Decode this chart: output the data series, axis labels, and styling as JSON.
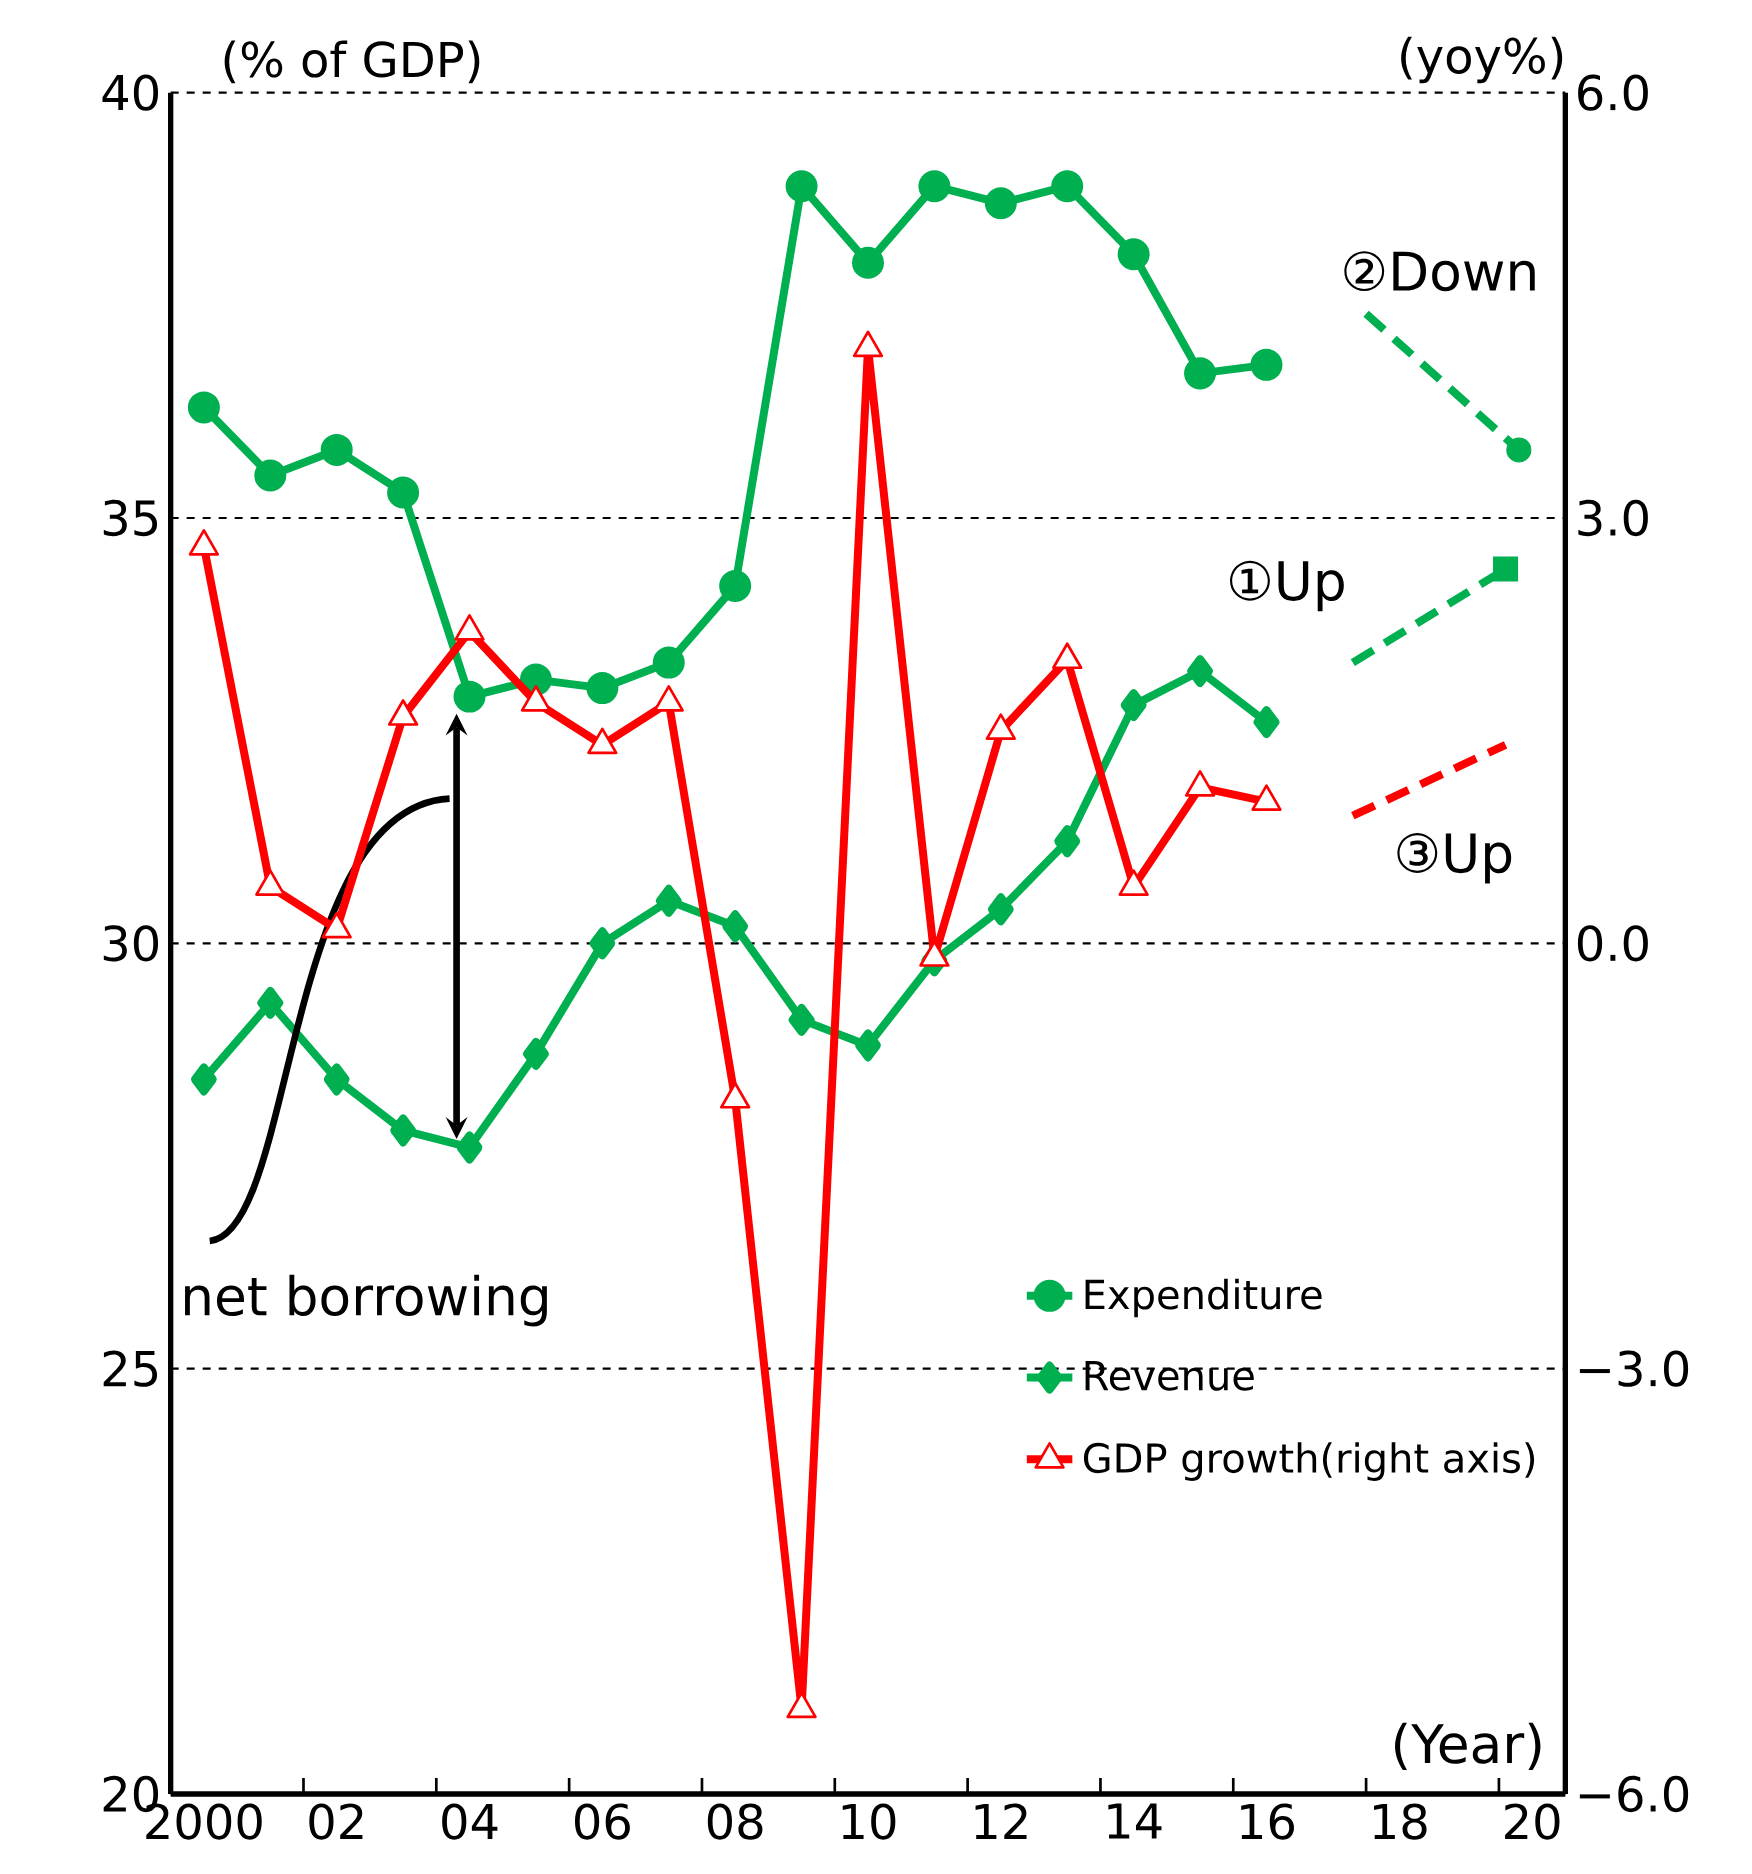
{
  "chart_data": {
    "type": "line",
    "ylabel": "(% of GDP)",
    "y2label": "(yoy%)",
    "xlim": [
      1999.5,
      2020.5
    ],
    "xticks": [
      {
        "value": 2000,
        "label": "2000"
      },
      {
        "value": 2002,
        "label": "02"
      },
      {
        "value": 2004,
        "label": "04"
      },
      {
        "value": 2006,
        "label": "06"
      },
      {
        "value": 2008,
        "label": "08"
      },
      {
        "value": 2010,
        "label": "10"
      },
      {
        "value": 2012,
        "label": "12"
      },
      {
        "value": 2014,
        "label": "14"
      },
      {
        "value": 2016,
        "label": "16"
      },
      {
        "value": 2018,
        "label": "18"
      },
      {
        "value": 2020,
        "label": "20"
      },
      {
        "value": 2001.5,
        "label": null
      },
      {
        "value": 2003.5,
        "label": null
      },
      {
        "value": 2005.5,
        "label": null
      },
      {
        "value": 2007.5,
        "label": null
      },
      {
        "value": 2009.5,
        "label": null
      },
      {
        "value": 2011.5,
        "label": null
      },
      {
        "value": 2013.5,
        "label": null
      },
      {
        "value": 2015.5,
        "label": null
      },
      {
        "value": 2017.5,
        "label": null
      },
      {
        "value": 2019.5,
        "label": null
      }
    ],
    "ylim": [
      20,
      40
    ],
    "yticks": [
      20,
      25,
      30,
      35,
      40
    ],
    "y2lim": [
      -6,
      6
    ],
    "y2ticks": [
      {
        "value": -6,
        "label": "−6.0"
      },
      {
        "value": -3,
        "label": "−3.0"
      },
      {
        "value": 0,
        "label": "0.0"
      },
      {
        "value": 3,
        "label": "3.0"
      },
      {
        "value": 6,
        "label": "6.0"
      }
    ],
    "grid": "y",
    "legend": "bottom right",
    "series": [
      {
        "name": "Expenditure",
        "color": "#00b050",
        "marker": "circle",
        "x": [
          2000,
          2001,
          2002,
          2003,
          2004,
          2005,
          2006,
          2007,
          2008,
          2009,
          2010,
          2011,
          2012,
          2013,
          2014,
          2015,
          2016
        ],
        "values": [
          36.3,
          35.5,
          35.8,
          35.3,
          32.9,
          33.1,
          33.0,
          33.3,
          34.2,
          38.9,
          38.0,
          38.9,
          38.7,
          38.9,
          38.1,
          36.7,
          36.8
        ]
      },
      {
        "name": "Revenue",
        "color": "#00b050",
        "marker": "diamond",
        "x": [
          2000,
          2001,
          2002,
          2003,
          2004,
          2005,
          2006,
          2007,
          2008,
          2009,
          2010,
          2011,
          2012,
          2013,
          2014,
          2015,
          2016
        ],
        "values": [
          28.4,
          29.3,
          28.4,
          27.8,
          27.6,
          28.7,
          30.0,
          30.5,
          30.2,
          29.1,
          28.8,
          29.8,
          30.4,
          31.2,
          32.8,
          33.2,
          32.6
        ]
      },
      {
        "name": "GDP growth(right axis)",
        "color": "#ff0000",
        "marker": "triangle",
        "axis": "y2",
        "x": [
          2000,
          2001,
          2002,
          2003,
          2004,
          2005,
          2006,
          2007,
          2008,
          2009,
          2010,
          2011,
          2012,
          2013,
          2014,
          2015,
          2016
        ],
        "values": [
          2.8,
          0.4,
          0.1,
          1.6,
          2.2,
          1.7,
          1.4,
          1.7,
          -1.1,
          -5.4,
          4.2,
          -0.1,
          1.5,
          2.0,
          0.4,
          1.1,
          1.0
        ]
      },
      {
        "type": "line",
        "color": "#00b050",
        "marker": "none",
        "line_style": "dashed",
        "x": [
          2017.5,
          2019.8
        ],
        "values": [
          37.4,
          35.8
        ]
      },
      {
        "type": "scatter",
        "color": "#00b050",
        "marker": "circle",
        "x": [
          2019.8
        ],
        "values": [
          35.8
        ]
      },
      {
        "type": "line",
        "color": "#00b050",
        "marker": "none",
        "line_style": "dashed",
        "x": [
          2017.3,
          2019.6
        ],
        "values": [
          33.3,
          34.4
        ]
      },
      {
        "type": "scatter",
        "color": "#00b050",
        "marker": "square",
        "x": [
          2019.6
        ],
        "values": [
          34.4
        ]
      },
      {
        "type": "line",
        "color": "#ff0000",
        "marker": "none",
        "line_style": "dashed",
        "axis": "y2",
        "x": [
          2017.3,
          2019.6
        ],
        "values": [
          0.9,
          1.4
        ]
      }
    ],
    "annotations": [
      "②Down",
      "①Up",
      "③Up",
      "net borrowing",
      "(Year)"
    ]
  }
}
